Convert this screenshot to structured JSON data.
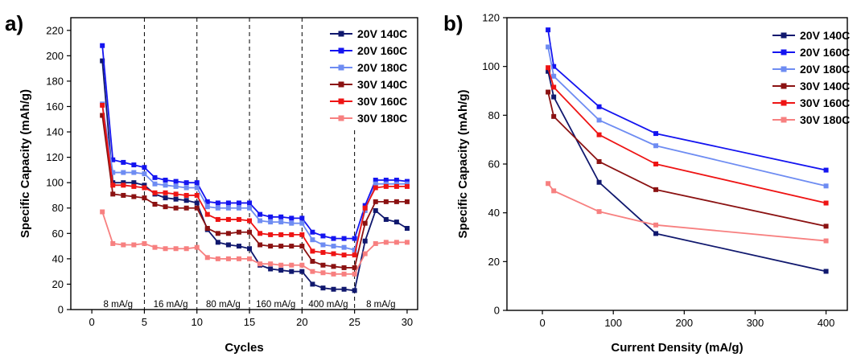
{
  "panel_labels": {
    "a": "a)",
    "b": "b)"
  },
  "chart_data": [
    {
      "type": "line",
      "panel": "a)",
      "xlabel": "Cycles",
      "ylabel": "Specific Capacity (mAh/g)",
      "xlim": [
        -2,
        31
      ],
      "ylim": [
        0,
        230
      ],
      "xticks": [
        0,
        5,
        10,
        15,
        20,
        25,
        30
      ],
      "yticks": [
        0,
        20,
        40,
        60,
        80,
        100,
        120,
        140,
        160,
        180,
        200,
        220
      ],
      "grid": false,
      "legend_position": "top-right",
      "dividers_at_x": [
        5,
        10,
        15,
        20,
        25
      ],
      "rate_labels": [
        {
          "text": "8 mA/g",
          "x": 2.5
        },
        {
          "text": "16 mA/g",
          "x": 7.5
        },
        {
          "text": "80 mA/g",
          "x": 12.5
        },
        {
          "text": "160 mA/g",
          "x": 17.5
        },
        {
          "text": "400 mA/g",
          "x": 22.5
        },
        {
          "text": "8 mA/g",
          "x": 27.5
        }
      ],
      "x": [
        1,
        2,
        3,
        4,
        5,
        6,
        7,
        8,
        9,
        10,
        11,
        12,
        13,
        14,
        15,
        16,
        17,
        18,
        19,
        20,
        21,
        22,
        23,
        24,
        25,
        26,
        27,
        28,
        29,
        30
      ],
      "series": [
        {
          "name": "20V 140C",
          "color": "#10186e",
          "values": [
            196,
            100,
            100,
            100,
            98,
            91,
            88,
            87,
            86,
            84,
            63,
            53,
            51,
            50,
            48,
            35,
            32,
            31,
            30,
            30,
            20,
            17,
            16,
            16,
            15,
            54,
            78,
            71,
            69,
            64
          ]
        },
        {
          "name": "20V 160C",
          "color": "#1414f0",
          "values": [
            208,
            118,
            116,
            114,
            112,
            104,
            102,
            101,
            100,
            100,
            85,
            84,
            84,
            84,
            84,
            75,
            73,
            73,
            72,
            72,
            61,
            58,
            56,
            56,
            56,
            82,
            102,
            102,
            102,
            101
          ]
        },
        {
          "name": "20V 180C",
          "color": "#6e8cf2",
          "values": [
            162,
            108,
            108,
            108,
            107,
            99,
            98,
            97,
            96,
            96,
            81,
            80,
            80,
            80,
            80,
            70,
            69,
            69,
            68,
            68,
            55,
            51,
            50,
            49,
            47,
            78,
            99,
            99,
            99,
            99
          ]
        },
        {
          "name": "30V 140C",
          "color": "#8b1212",
          "values": [
            153,
            91,
            90,
            89,
            88,
            83,
            81,
            80,
            80,
            80,
            64,
            60,
            60,
            61,
            61,
            51,
            50,
            50,
            50,
            50,
            38,
            35,
            34,
            33,
            33,
            68,
            85,
            85,
            85,
            85
          ]
        },
        {
          "name": "30V 160C",
          "color": "#ee1414",
          "values": [
            161,
            98,
            98,
            97,
            96,
            92,
            92,
            91,
            90,
            90,
            75,
            71,
            71,
            71,
            70,
            60,
            59,
            59,
            59,
            59,
            46,
            45,
            44,
            43,
            43,
            80,
            96,
            97,
            97,
            97
          ]
        },
        {
          "name": "30V 180C",
          "color": "#f78080",
          "values": [
            77,
            52,
            51,
            51,
            52,
            49,
            48,
            48,
            48,
            49,
            41,
            40,
            40,
            40,
            40,
            36,
            36,
            35,
            35,
            35,
            30,
            29,
            28,
            28,
            28,
            44,
            52,
            53,
            53,
            53
          ]
        }
      ]
    },
    {
      "type": "line",
      "panel": "b)",
      "xlabel": "Current Density (mA/g)",
      "ylabel": "Specific Capacity (mAh/g)",
      "xlim": [
        -50,
        430
      ],
      "ylim": [
        0,
        120
      ],
      "xticks": [
        0,
        100,
        200,
        300,
        400
      ],
      "yticks": [
        0,
        20,
        40,
        60,
        80,
        100,
        120
      ],
      "grid": false,
      "legend_position": "top-right",
      "x": [
        8,
        16,
        80,
        160,
        400
      ],
      "series": [
        {
          "name": "20V 140C",
          "color": "#10186e",
          "values": [
            98,
            87.5,
            52.5,
            31.5,
            16
          ]
        },
        {
          "name": "20V 160C",
          "color": "#1414f0",
          "values": [
            115,
            100,
            83.5,
            72.5,
            57.5
          ]
        },
        {
          "name": "20V 180C",
          "color": "#6e8cf2",
          "values": [
            108,
            96,
            78,
            67.5,
            51
          ]
        },
        {
          "name": "30V 140C",
          "color": "#8b1212",
          "values": [
            89.5,
            79.5,
            61,
            49.5,
            34.5
          ]
        },
        {
          "name": "30V 160C",
          "color": "#ee1414",
          "values": [
            99.5,
            91.5,
            72,
            60,
            44
          ]
        },
        {
          "name": "30V 180C",
          "color": "#f78080",
          "values": [
            52,
            49,
            40.5,
            35,
            28.5
          ]
        }
      ]
    }
  ]
}
